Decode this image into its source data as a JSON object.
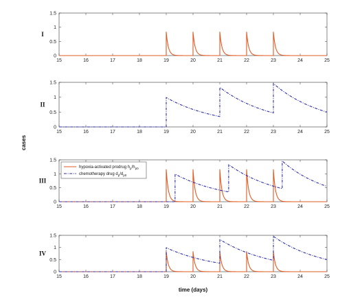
{
  "chart_data": {
    "type": "line",
    "xlabel": "time (days)",
    "ylabel": "cases",
    "xlim": [
      15,
      25
    ],
    "x_ticks": [
      "15",
      "16",
      "17",
      "18",
      "19",
      "20",
      "21",
      "22",
      "23",
      "24",
      "25"
    ],
    "colors": {
      "prodrug": "#e0581f",
      "chemo": "#2b2ba8"
    },
    "legend": {
      "placement": "top-left",
      "entries": [
        {
          "series": "prodrug",
          "label": "hypoxia-activated prodrug h",
          "sub1": "p",
          "mid": "/h",
          "sub2": "p0"
        },
        {
          "series": "chemo",
          "label": "chemotherapy drug d",
          "sub1": "p",
          "mid": "/d",
          "sub2": "p0"
        }
      ]
    },
    "panels": [
      {
        "label": "I",
        "ylim": [
          0,
          1.5
        ],
        "y_ticks": [
          "0",
          "0.5",
          "1",
          "1.5"
        ],
        "series": [
          {
            "key": "prodrug",
            "style": "solid",
            "dose_days": [
              19,
              20,
              21,
              22,
              23
            ],
            "peak": 0.83,
            "decay_tau_days": 0.08
          }
        ]
      },
      {
        "label": "II",
        "ylim": [
          0,
          1.5
        ],
        "y_ticks": [
          "0",
          "0.5",
          "1",
          "1.5"
        ],
        "series": [
          {
            "key": "chemo",
            "style": "dashdot",
            "jumps": [
              {
                "day": 19,
                "to": 0.99
              },
              {
                "day": 21,
                "to": 1.33
              },
              {
                "day": 23,
                "to": 1.46
              }
            ],
            "values_before_jump": [
              {
                "day": 21,
                "value": 0.35
              },
              {
                "day": 23,
                "value": 0.47
              }
            ],
            "end_value": 0.5
          }
        ]
      },
      {
        "label": "III",
        "ylim": [
          0,
          1.5
        ],
        "y_ticks": [
          "0",
          "0.5",
          "1",
          "1.5"
        ],
        "series": [
          {
            "key": "prodrug",
            "style": "solid",
            "dose_days": [
              19,
              20,
              21,
              22,
              23
            ],
            "peak": 1.15,
            "decay_tau_days": 0.08
          },
          {
            "key": "chemo",
            "style": "dashdot",
            "jumps": [
              {
                "day": 19.33,
                "to": 0.99
              },
              {
                "day": 21.33,
                "to": 1.33
              },
              {
                "day": 23.33,
                "to": 1.46
              }
            ],
            "values_before_jump": [
              {
                "day": 21.33,
                "value": 0.35
              },
              {
                "day": 23.33,
                "value": 0.47
              }
            ],
            "end_value": 0.55
          }
        ]
      },
      {
        "label": "IV",
        "ylim": [
          0,
          1.5
        ],
        "y_ticks": [
          "0",
          "0.5",
          "1",
          "1.5"
        ],
        "series": [
          {
            "key": "prodrug",
            "style": "solid",
            "dose_days": [
              19,
              20,
              21,
              22,
              23
            ],
            "peak": 0.83,
            "decay_tau_days": 0.08
          },
          {
            "key": "chemo",
            "style": "dashdot",
            "jumps": [
              {
                "day": 19,
                "to": 0.99
              },
              {
                "day": 21,
                "to": 1.33
              },
              {
                "day": 23,
                "to": 1.46
              }
            ],
            "values_before_jump": [
              {
                "day": 21,
                "value": 0.35
              },
              {
                "day": 23,
                "value": 0.47
              }
            ],
            "end_value": 0.5
          }
        ]
      }
    ]
  }
}
